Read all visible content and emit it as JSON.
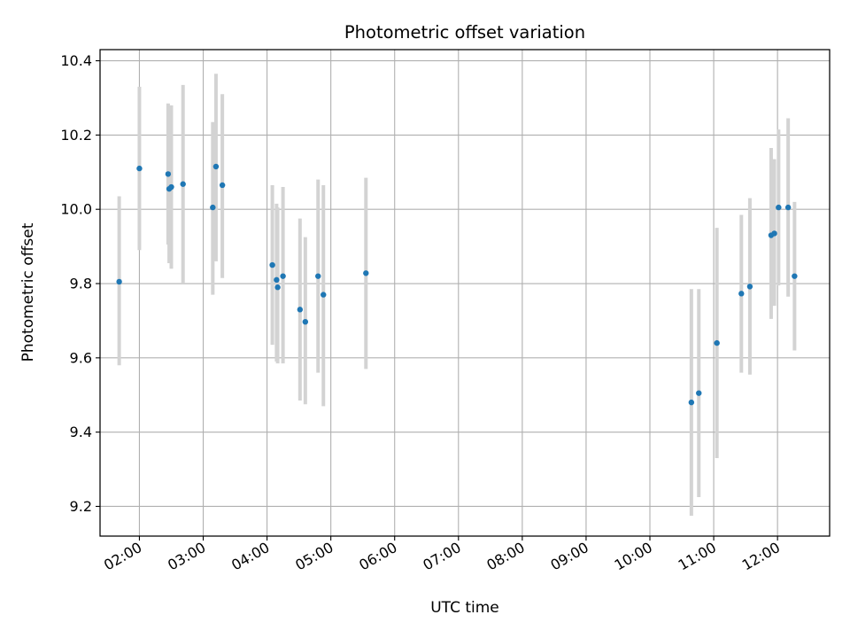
{
  "chart_data": {
    "type": "scatter",
    "title": "Photometric offset variation",
    "xlabel": "UTC time",
    "ylabel": "Photometric offset",
    "x_tick_labels": [
      "02:00",
      "03:00",
      "04:00",
      "05:00",
      "06:00",
      "07:00",
      "08:00",
      "09:00",
      "10:00",
      "11:00",
      "12:00"
    ],
    "y_tick_labels": [
      "9.2",
      "9.4",
      "9.6",
      "9.8",
      "10.0",
      "10.2",
      "10.4"
    ],
    "y_ticks": [
      9.2,
      9.4,
      9.6,
      9.8,
      10.0,
      10.2,
      10.4
    ],
    "xlim": [
      "01:23",
      "12:49"
    ],
    "ylim": [
      9.12,
      10.43
    ],
    "grid": true,
    "colors": {
      "point": "#1f77b4",
      "errorbar": "#d3d3d3",
      "grid": "#b0b0b0"
    },
    "points": [
      {
        "x": "01:41",
        "y": 9.805,
        "ylo": 9.58,
        "yhi": 10.035
      },
      {
        "x": "02:00",
        "y": 10.11,
        "ylo": 9.89,
        "yhi": 10.33
      },
      {
        "x": "02:27",
        "y": 10.095,
        "ylo": 9.905,
        "yhi": 10.285
      },
      {
        "x": "02:28",
        "y": 10.055,
        "ylo": 9.855,
        "yhi": 10.255
      },
      {
        "x": "02:30",
        "y": 10.06,
        "ylo": 9.84,
        "yhi": 10.28
      },
      {
        "x": "02:41",
        "y": 10.068,
        "ylo": 9.8,
        "yhi": 10.335
      },
      {
        "x": "03:09",
        "y": 10.005,
        "ylo": 9.77,
        "yhi": 10.235
      },
      {
        "x": "03:12",
        "y": 10.115,
        "ylo": 9.86,
        "yhi": 10.365
      },
      {
        "x": "03:18",
        "y": 10.065,
        "ylo": 9.815,
        "yhi": 10.31
      },
      {
        "x": "04:05",
        "y": 9.85,
        "ylo": 9.635,
        "yhi": 10.065
      },
      {
        "x": "04:09",
        "y": 9.81,
        "ylo": 9.59,
        "yhi": 10.015
      },
      {
        "x": "04:10",
        "y": 9.79,
        "ylo": 9.585,
        "yhi": 10.005
      },
      {
        "x": "04:15",
        "y": 9.82,
        "ylo": 9.585,
        "yhi": 10.06
      },
      {
        "x": "04:31",
        "y": 9.73,
        "ylo": 9.485,
        "yhi": 9.975
      },
      {
        "x": "04:36",
        "y": 9.697,
        "ylo": 9.475,
        "yhi": 9.925
      },
      {
        "x": "04:48",
        "y": 9.82,
        "ylo": 9.56,
        "yhi": 10.08
      },
      {
        "x": "04:53",
        "y": 9.77,
        "ylo": 9.47,
        "yhi": 10.065
      },
      {
        "x": "05:33",
        "y": 9.828,
        "ylo": 9.57,
        "yhi": 10.085
      },
      {
        "x": "10:39",
        "y": 9.48,
        "ylo": 9.175,
        "yhi": 9.785
      },
      {
        "x": "10:46",
        "y": 9.505,
        "ylo": 9.225,
        "yhi": 9.785
      },
      {
        "x": "11:03",
        "y": 9.64,
        "ylo": 9.33,
        "yhi": 9.95
      },
      {
        "x": "11:26",
        "y": 9.773,
        "ylo": 9.56,
        "yhi": 9.985
      },
      {
        "x": "11:34",
        "y": 9.792,
        "ylo": 9.555,
        "yhi": 10.03
      },
      {
        "x": "11:54",
        "y": 9.93,
        "ylo": 9.705,
        "yhi": 10.165
      },
      {
        "x": "11:57",
        "y": 9.935,
        "ylo": 9.74,
        "yhi": 10.135
      },
      {
        "x": "12:01",
        "y": 10.005,
        "ylo": 9.795,
        "yhi": 10.215
      },
      {
        "x": "12:10",
        "y": 10.005,
        "ylo": 9.765,
        "yhi": 10.245
      },
      {
        "x": "12:16",
        "y": 9.82,
        "ylo": 9.62,
        "yhi": 10.02
      }
    ]
  }
}
